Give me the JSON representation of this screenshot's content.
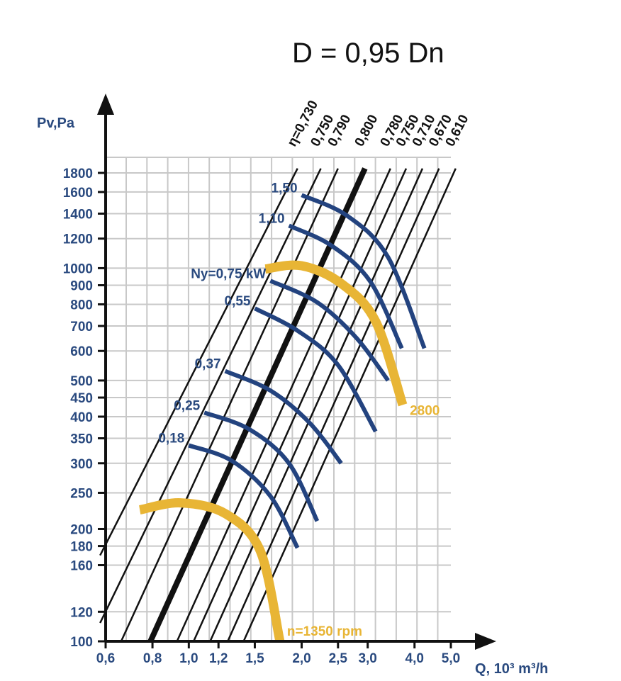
{
  "chart_data": {
    "type": "line",
    "title": "D = 0,95 Dn",
    "xlabel": "Q, 10³ m³/h",
    "ylabel": "Pv,Pa",
    "x_scale": "log",
    "y_scale": "log",
    "xlim": [
      0.6,
      5.0
    ],
    "ylim": [
      100,
      1800
    ],
    "grid": true,
    "x_ticks": [
      {
        "value": 0.6,
        "label": "0,6"
      },
      {
        "value": 0.8,
        "label": "0,8"
      },
      {
        "value": 1.0,
        "label": "1,0"
      },
      {
        "value": 1.2,
        "label": "1,2"
      },
      {
        "value": 1.5,
        "label": "1,5"
      },
      {
        "value": 2.0,
        "label": "2,0"
      },
      {
        "value": 2.5,
        "label": "2,5"
      },
      {
        "value": 3.0,
        "label": "3,0"
      },
      {
        "value": 4.0,
        "label": "4,0"
      },
      {
        "value": 5.0,
        "label": "5,0"
      }
    ],
    "y_ticks": [
      {
        "value": 100,
        "label": "100"
      },
      {
        "value": 120,
        "label": "120"
      },
      {
        "value": 160,
        "label": "160"
      },
      {
        "value": 180,
        "label": "180"
      },
      {
        "value": 200,
        "label": "200"
      },
      {
        "value": 250,
        "label": "250"
      },
      {
        "value": 300,
        "label": "300"
      },
      {
        "value": 350,
        "label": "350"
      },
      {
        "value": 400,
        "label": "400"
      },
      {
        "value": 450,
        "label": "450"
      },
      {
        "value": 500,
        "label": "500"
      },
      {
        "value": 600,
        "label": "600"
      },
      {
        "value": 700,
        "label": "700"
      },
      {
        "value": 800,
        "label": "800"
      },
      {
        "value": 900,
        "label": "900"
      },
      {
        "value": 1000,
        "label": "1000"
      },
      {
        "value": 1200,
        "label": "1200"
      },
      {
        "value": 1400,
        "label": "1400"
      },
      {
        "value": 1600,
        "label": "1600"
      },
      {
        "value": 1800,
        "label": "1800"
      }
    ],
    "efficiency_lines": [
      {
        "label": "η=0,730",
        "bold": false,
        "points": [
          [
            0.58,
            170
          ],
          [
            1.95,
            1850
          ]
        ]
      },
      {
        "label": "0,750",
        "bold": false,
        "points": [
          [
            0.58,
            112
          ],
          [
            2.25,
            1850
          ]
        ]
      },
      {
        "label": "0,790",
        "bold": false,
        "points": [
          [
            0.66,
            100
          ],
          [
            2.5,
            1850
          ]
        ]
      },
      {
        "label": "0,800",
        "bold": true,
        "points": [
          [
            0.79,
            100
          ],
          [
            2.95,
            1850
          ]
        ]
      },
      {
        "label": "0,780",
        "bold": false,
        "points": [
          [
            0.93,
            100
          ],
          [
            3.45,
            1850
          ]
        ]
      },
      {
        "label": "0,750",
        "bold": false,
        "points": [
          [
            1.03,
            100
          ],
          [
            3.8,
            1850
          ]
        ]
      },
      {
        "label": "0,710",
        "bold": false,
        "points": [
          [
            1.14,
            100
          ],
          [
            4.2,
            1850
          ]
        ]
      },
      {
        "label": "0,670",
        "bold": false,
        "points": [
          [
            1.27,
            100
          ],
          [
            4.65,
            1850
          ]
        ]
      },
      {
        "label": "0,610",
        "bold": false,
        "points": [
          [
            1.4,
            100
          ],
          [
            5.15,
            1850
          ]
        ]
      }
    ],
    "power_curves": [
      {
        "label": "0,18",
        "points": [
          [
            1.0,
            335
          ],
          [
            1.3,
            305
          ],
          [
            1.65,
            245
          ],
          [
            1.95,
            178
          ]
        ]
      },
      {
        "label": "0,25",
        "points": [
          [
            1.1,
            410
          ],
          [
            1.45,
            370
          ],
          [
            1.85,
            300
          ],
          [
            2.2,
            210
          ]
        ]
      },
      {
        "label": "0,37",
        "points": [
          [
            1.25,
            530
          ],
          [
            1.65,
            470
          ],
          [
            2.1,
            385
          ],
          [
            2.55,
            300
          ]
        ]
      },
      {
        "label": "0,55",
        "points": [
          [
            1.5,
            780
          ],
          [
            1.95,
            680
          ],
          [
            2.5,
            550
          ],
          [
            3.15,
            365
          ]
        ]
      },
      {
        "label": "Ny=0,75 kW",
        "points": [
          [
            1.65,
            925
          ],
          [
            2.2,
            810
          ],
          [
            2.8,
            650
          ],
          [
            3.4,
            500
          ]
        ]
      },
      {
        "label": "1,10",
        "points": [
          [
            1.85,
            1300
          ],
          [
            2.4,
            1150
          ],
          [
            3.05,
            920
          ],
          [
            3.7,
            610
          ]
        ]
      },
      {
        "label": "1,50",
        "points": [
          [
            2.0,
            1570
          ],
          [
            2.65,
            1380
          ],
          [
            3.4,
            1070
          ],
          [
            4.25,
            610
          ]
        ]
      }
    ],
    "speed_curves": [
      {
        "label": "n=1350 rpm",
        "points": [
          [
            0.74,
            225
          ],
          [
            0.95,
            235
          ],
          [
            1.25,
            220
          ],
          [
            1.55,
            175
          ],
          [
            1.75,
            100
          ]
        ]
      },
      {
        "label": "2800",
        "points": [
          [
            1.6,
            995
          ],
          [
            2.0,
            1015
          ],
          [
            2.55,
            910
          ],
          [
            3.15,
            720
          ],
          [
            3.72,
            430
          ]
        ]
      }
    ],
    "colors": {
      "grid": "#c8c8c8",
      "axis": "#111111",
      "efficiency": "#111111",
      "power": "#23437f",
      "speed": "#e8b535",
      "text": "#2a4a7f"
    }
  }
}
